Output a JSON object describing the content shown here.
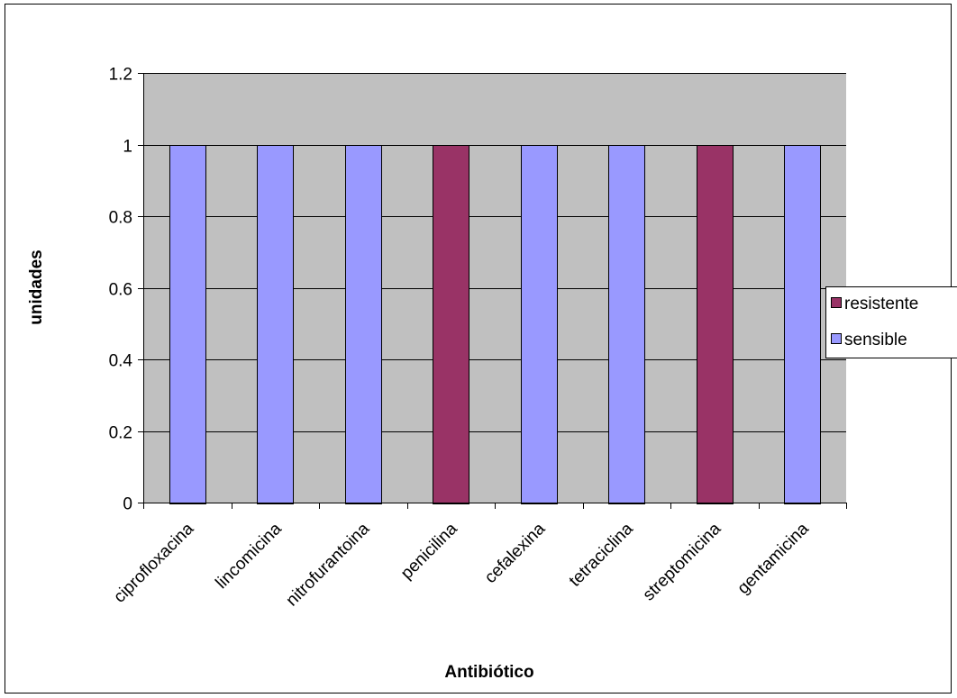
{
  "colors": {
    "plot_background": "#C0C0C0",
    "resistente": "#993366",
    "sensible": "#9999FF",
    "gridline": "#000000",
    "border": "#000000"
  },
  "chart_data": {
    "type": "bar",
    "categories": [
      "ciprofloxacina",
      "lincomicina",
      "nitrofurantoina",
      "penicilina",
      "cefalexina",
      "tetraciclina",
      "streptomicina",
      "gentamicina"
    ],
    "series": [
      {
        "name": "resistente",
        "values": [
          0,
          0,
          0,
          1,
          0,
          0,
          1,
          0
        ]
      },
      {
        "name": "sensible",
        "values": [
          1,
          1,
          1,
          0,
          1,
          1,
          0,
          1
        ]
      }
    ],
    "title": "",
    "xlabel": "Antibiótico",
    "ylabel": "unidades",
    "ylim": [
      0,
      1.2
    ],
    "yticks": [
      "0",
      "0.2",
      "0.4",
      "0.6",
      "0.8",
      "1",
      "1.2"
    ],
    "grid": true,
    "legend_position": "right"
  }
}
